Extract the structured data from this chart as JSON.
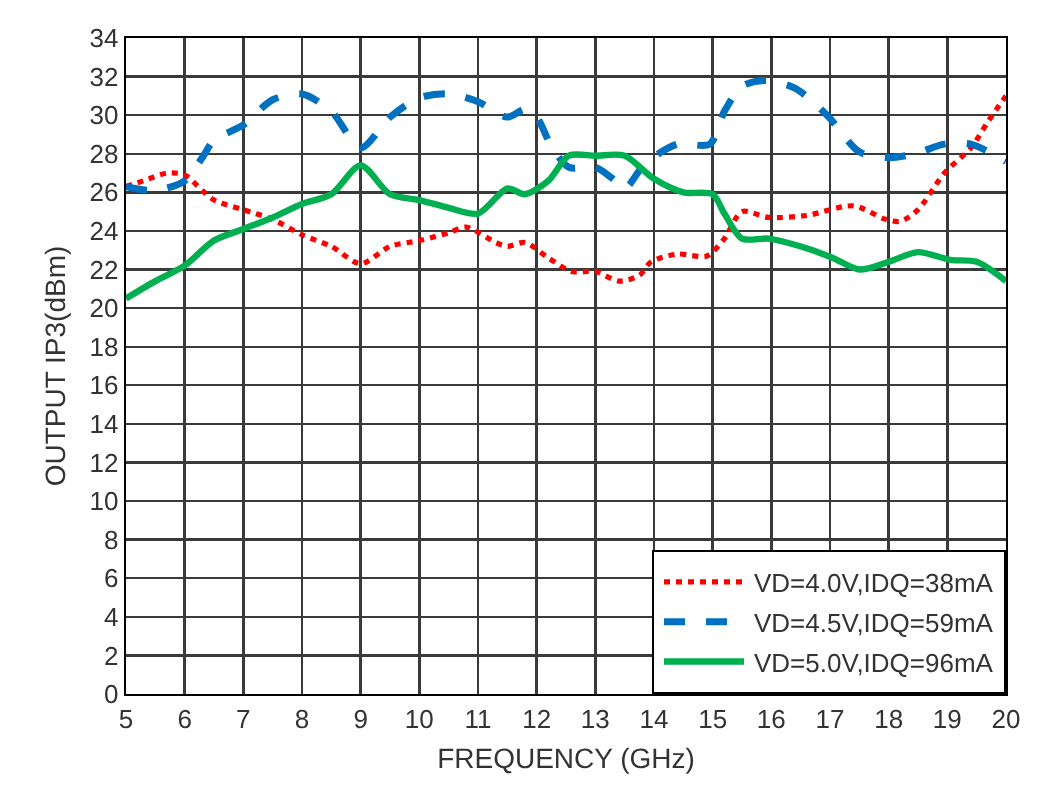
{
  "chart_data": {
    "type": "line",
    "xlabel": "FREQUENCY (GHz)",
    "ylabel": "OUTPUT IP3(dBm)",
    "xlim": [
      5,
      20
    ],
    "xticks": [
      5,
      6,
      7,
      8,
      9,
      10,
      11,
      12,
      13,
      14,
      15,
      16,
      17,
      18,
      19,
      20
    ],
    "ylim": [
      0,
      34
    ],
    "yticks": [
      0,
      2,
      4,
      6,
      8,
      10,
      12,
      14,
      16,
      18,
      20,
      22,
      24,
      26,
      28,
      30,
      32,
      34
    ],
    "grid": true,
    "legend": "bottom right",
    "marker": "none",
    "series": [
      {
        "name": "VD=4.0V,IDQ=38mA",
        "color": "#ff0000",
        "line_style": "dotted",
        "x": [
          5,
          5.3,
          5.7,
          6,
          6.3,
          6.5,
          7,
          7.5,
          8,
          8.5,
          9,
          9.5,
          10,
          10.5,
          10.8,
          11.3,
          11.5,
          11.8,
          12.2,
          12.6,
          13,
          13.4,
          13.75,
          13.95,
          14.4,
          14.9,
          15.2,
          15.5,
          15.95,
          16.6,
          17.4,
          17.95,
          18.2,
          18.5,
          18.95,
          19.4,
          19.7,
          20
        ],
        "values": [
          26.3,
          26.6,
          27.0,
          26.9,
          26.1,
          25.6,
          25.1,
          24.6,
          23.8,
          23.2,
          22.3,
          23.2,
          23.5,
          23.9,
          24.2,
          23.4,
          23.2,
          23.4,
          22.6,
          21.9,
          21.9,
          21.4,
          21.7,
          22.4,
          22.8,
          22.7,
          23.6,
          25.0,
          24.7,
          24.8,
          25.3,
          24.6,
          24.5,
          25.1,
          27.0,
          28.3,
          29.7,
          31.0
        ]
      },
      {
        "name": "VD=4.5V,IDQ=59mA",
        "color": "#0070c0",
        "line_style": "dashed",
        "x": [
          5,
          5.5,
          6,
          6.3,
          6.5,
          7,
          7.5,
          8,
          8.5,
          9,
          9.5,
          10,
          10.5,
          11,
          11.5,
          11.8,
          12,
          12.25,
          12.55,
          13,
          13.3,
          13.5,
          13.85,
          14.4,
          14.95,
          15.2,
          15.5,
          15.9,
          16.4,
          16.95,
          17.5,
          18,
          18.45,
          18.95,
          19.4,
          20
        ],
        "values": [
          26.3,
          26.1,
          26.6,
          27.8,
          28.7,
          29.5,
          30.8,
          31.1,
          30.2,
          28.3,
          29.9,
          30.9,
          31.1,
          30.7,
          29.9,
          30.3,
          29.9,
          28.4,
          27.3,
          27.3,
          26.7,
          26.2,
          27.5,
          28.5,
          28.5,
          30.2,
          31.5,
          31.8,
          31.4,
          30.0,
          28.1,
          27.8,
          28.0,
          28.5,
          28.5,
          27.6
        ]
      },
      {
        "name": "VD=5.0V,IDQ=96mA",
        "color": "#00b050",
        "line_style": "solid",
        "x": [
          5,
          5.5,
          6,
          6.5,
          7,
          7.5,
          8,
          8.5,
          9,
          9.5,
          10,
          10.5,
          11,
          11.5,
          11.8,
          12.2,
          12.55,
          13,
          13.5,
          14,
          14.5,
          15,
          15.2,
          15.5,
          15.95,
          16.6,
          17.05,
          17.5,
          18,
          18.5,
          19.05,
          19.5,
          20
        ],
        "values": [
          20.5,
          21.4,
          22.2,
          23.5,
          24.1,
          24.7,
          25.4,
          25.9,
          27.4,
          25.9,
          25.6,
          25.2,
          24.9,
          26.2,
          25.9,
          26.6,
          27.9,
          27.9,
          27.9,
          26.7,
          26.0,
          25.9,
          24.9,
          23.6,
          23.6,
          23.1,
          22.6,
          22.0,
          22.4,
          22.9,
          22.5,
          22.4,
          21.4
        ]
      }
    ]
  }
}
